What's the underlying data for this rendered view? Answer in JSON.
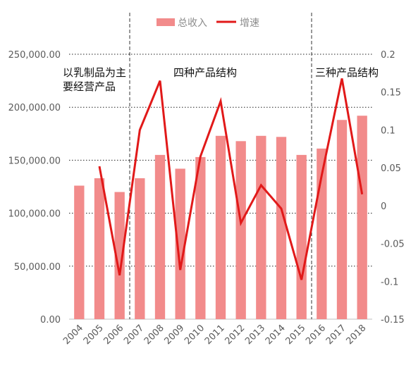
{
  "chart_data": {
    "type": "bar+line",
    "categories": [
      "2004",
      "2005",
      "2006",
      "2007",
      "2008",
      "2009",
      "2010",
      "2011",
      "2012",
      "2013",
      "2014",
      "2015",
      "2016",
      "2017",
      "2018"
    ],
    "series": [
      {
        "name": "总收入",
        "type": "bar",
        "axis": "left",
        "color": "#f28b8b",
        "values": [
          126000,
          133000,
          120000,
          133000,
          155000,
          142000,
          153000,
          173000,
          168000,
          173000,
          172000,
          155000,
          161000,
          188000,
          192000
        ]
      },
      {
        "name": "增速",
        "type": "line",
        "axis": "right",
        "color": "#e11919",
        "values": [
          null,
          0.052,
          -0.092,
          0.1,
          0.165,
          -0.085,
          0.065,
          0.138,
          -0.023,
          0.027,
          -0.004,
          -0.098,
          0.04,
          0.168,
          0.015
        ]
      }
    ],
    "left_axis": {
      "min": 0,
      "max": 250000,
      "ticks": [
        "0.00",
        "50,000.00",
        "100,000.00",
        "150,000.00",
        "200,000.00",
        "250,000.00"
      ]
    },
    "right_axis": {
      "min": -0.15,
      "max": 0.2,
      "ticks": [
        "-0.15",
        "-0.1",
        "-0.05",
        "0",
        "0.05",
        "0.1",
        "0.15",
        "0.2"
      ]
    },
    "annotations": [
      {
        "lines": [
          "以乳制品为主",
          "要经营产品"
        ]
      },
      {
        "lines": [
          "四种产品结构"
        ]
      },
      {
        "lines": [
          "三种产品结构"
        ]
      }
    ],
    "dividers_after": [
      "2006",
      "2015"
    ],
    "grid": "horizontal dotted",
    "legend_position": "top"
  }
}
